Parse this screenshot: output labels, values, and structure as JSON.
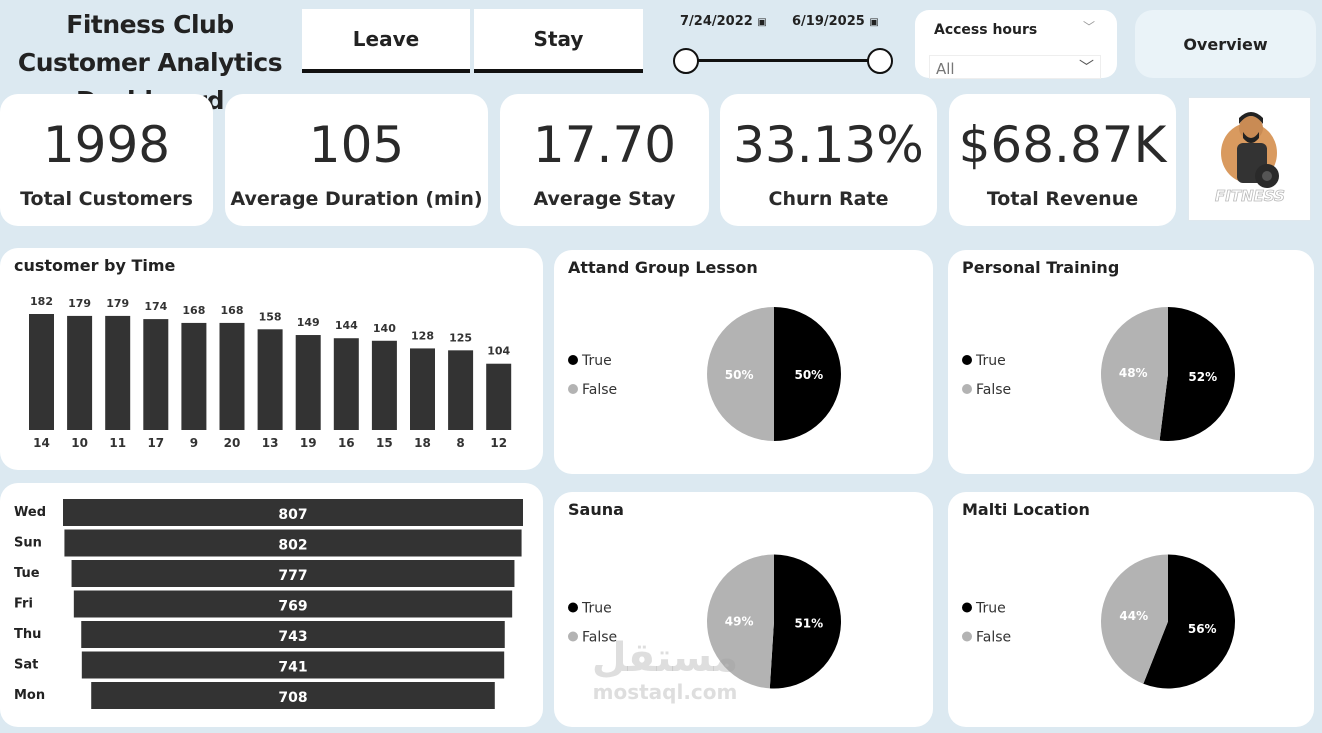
{
  "header": {
    "title": "Fitness Club Customer Analytics Dashboard",
    "tabs": [
      "Leave",
      "Stay"
    ],
    "date_start": "7/24/2022",
    "date_end": "6/19/2025",
    "slicer_label": "Access hours",
    "slicer_value": "All",
    "overview_label": "Overview"
  },
  "kpis": [
    {
      "value": "1998",
      "label": "Total Customers"
    },
    {
      "value": "105",
      "label": "Average Duration (min)"
    },
    {
      "value": "17.70",
      "label": "Average Stay"
    },
    {
      "value": "33.13%",
      "label": "Churn Rate"
    },
    {
      "value": "$68.87K",
      "label": "Total Revenue"
    }
  ],
  "logo": {
    "text": "FITNESS"
  },
  "watermark": {
    "arabic": "مستقل",
    "latin": "mostaql.com"
  },
  "colors": {
    "bar": "#333333",
    "true": "#000000",
    "false": "#b3b3b3",
    "background": "#dce9f1"
  },
  "chart_data": [
    {
      "type": "bar",
      "title": "customer by Time",
      "categories": [
        "14",
        "10",
        "11",
        "17",
        "9",
        "20",
        "13",
        "19",
        "16",
        "15",
        "18",
        "8",
        "12"
      ],
      "values": [
        182,
        179,
        179,
        174,
        168,
        168,
        158,
        149,
        144,
        140,
        128,
        125,
        104
      ]
    },
    {
      "type": "bar",
      "orientation": "horizontal-funnel",
      "categories": [
        "Wed",
        "Sun",
        "Tue",
        "Fri",
        "Thu",
        "Sat",
        "Mon"
      ],
      "values": [
        807,
        802,
        777,
        769,
        743,
        741,
        708
      ]
    },
    {
      "type": "pie",
      "title": "Attand Group Lesson",
      "labels": [
        "True",
        "False"
      ],
      "values": [
        50,
        50
      ]
    },
    {
      "type": "pie",
      "title": "Personal Training",
      "labels": [
        "True",
        "False"
      ],
      "values": [
        52,
        48
      ]
    },
    {
      "type": "pie",
      "title": "Sauna",
      "labels": [
        "True",
        "False"
      ],
      "values": [
        51,
        49
      ]
    },
    {
      "type": "pie",
      "title": "Malti Location",
      "labels": [
        "True",
        "False"
      ],
      "values": [
        56,
        44
      ]
    }
  ]
}
